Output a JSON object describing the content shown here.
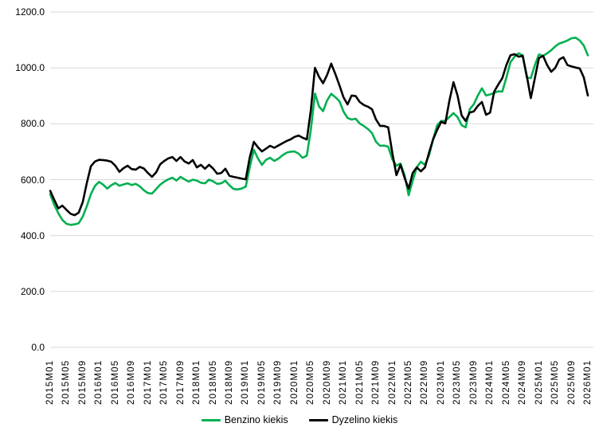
{
  "colors": {
    "background": "#ffffff",
    "gridline": "#d9d9d9",
    "axis_text": "#000000",
    "benzino_green": "#00B050",
    "dyzelino_black": "#000000"
  },
  "legend": {
    "items": [
      {
        "label": "Benzino kiekis"
      },
      {
        "label": "Dyzelino kiekis"
      }
    ]
  },
  "chart_data": {
    "type": "line",
    "title": "",
    "xlabel": "",
    "ylabel": "",
    "ylim": [
      0,
      1200
    ],
    "grid": "horizontal",
    "legend_position": "bottom",
    "x_tick_every": 4,
    "y_ticks": [
      {
        "value": 1200,
        "label": "1200.0"
      },
      {
        "value": 1000,
        "label": "1000.0"
      },
      {
        "value": 800,
        "label": "800.0"
      },
      {
        "value": 600,
        "label": "600.0"
      },
      {
        "value": 400,
        "label": "400.0"
      },
      {
        "value": 200,
        "label": "200.0"
      },
      {
        "value": 0,
        "label": "0.0"
      }
    ],
    "x_tick_labels": [
      "2015M01",
      "2015M05",
      "2015M09",
      "2016M01",
      "2016M05",
      "2016M09",
      "2017M01",
      "2017M05",
      "2017M09",
      "2018M01",
      "2018M05",
      "2018M09",
      "2019M01",
      "2019M05",
      "2019M09",
      "2020M01",
      "2020M05",
      "2020M09",
      "2021M01",
      "2021M05",
      "2021M09",
      "2022M01",
      "2022M05",
      "2022M09",
      "2023M01",
      "2023M05",
      "2023M09",
      "2024M01",
      "2024M05",
      "2024M09",
      "2025M01",
      "2025M05",
      "2025M09",
      "2026M01"
    ],
    "categories": [
      "2015M01",
      "2015M02",
      "2015M03",
      "2015M04",
      "2015M05",
      "2015M06",
      "2015M07",
      "2015M08",
      "2015M09",
      "2015M10",
      "2015M11",
      "2015M12",
      "2016M01",
      "2016M02",
      "2016M03",
      "2016M04",
      "2016M05",
      "2016M06",
      "2016M07",
      "2016M08",
      "2016M09",
      "2016M10",
      "2016M11",
      "2016M12",
      "2017M01",
      "2017M02",
      "2017M03",
      "2017M04",
      "2017M05",
      "2017M06",
      "2017M07",
      "2017M08",
      "2017M09",
      "2017M10",
      "2017M11",
      "2017M12",
      "2018M01",
      "2018M02",
      "2018M03",
      "2018M04",
      "2018M05",
      "2018M06",
      "2018M07",
      "2018M08",
      "2018M09",
      "2018M10",
      "2018M11",
      "2018M12",
      "2019M01",
      "2019M02",
      "2019M03",
      "2019M04",
      "2019M05",
      "2019M06",
      "2019M07",
      "2019M08",
      "2019M09",
      "2019M10",
      "2019M11",
      "2019M12",
      "2020M01",
      "2020M02",
      "2020M03",
      "2020M04",
      "2020M05",
      "2020M06",
      "2020M07",
      "2020M08",
      "2020M09",
      "2020M10",
      "2020M11",
      "2020M12",
      "2021M01",
      "2021M02",
      "2021M03",
      "2021M04",
      "2021M05",
      "2021M06",
      "2021M07",
      "2021M08",
      "2021M09",
      "2021M10",
      "2021M11",
      "2021M12",
      "2022M01",
      "2022M02",
      "2022M03",
      "2022M04",
      "2022M05",
      "2022M06",
      "2022M07",
      "2022M08",
      "2022M09",
      "2022M10",
      "2022M11",
      "2022M12",
      "2023M01",
      "2023M02",
      "2023M03",
      "2023M04",
      "2023M05",
      "2023M06",
      "2023M07",
      "2023M08",
      "2023M09",
      "2023M10",
      "2023M11",
      "2023M12",
      "2024M01",
      "2024M02",
      "2024M03",
      "2024M04",
      "2024M05",
      "2024M06",
      "2024M07",
      "2024M08",
      "2024M09",
      "2024M10",
      "2024M11",
      "2024M12",
      "2025M01",
      "2025M02",
      "2025M03",
      "2025M04",
      "2025M05",
      "2025M06",
      "2025M07",
      "2025M08",
      "2025M09",
      "2025M10",
      "2025M11",
      "2025M12",
      "2026M01"
    ],
    "series": [
      {
        "name": "Benzino kiekis",
        "color": "#00B050",
        "values": [
          548,
          510,
          480,
          456,
          442,
          438,
          440,
          444,
          468,
          505,
          548,
          578,
          592,
          582,
          568,
          580,
          588,
          578,
          583,
          587,
          581,
          585,
          576,
          562,
          552,
          550,
          566,
          582,
          593,
          601,
          607,
          597,
          610,
          601,
          593,
          600,
          597,
          589,
          587,
          600,
          594,
          585,
          587,
          596,
          580,
          567,
          565,
          568,
          575,
          645,
          707,
          676,
          653,
          671,
          678,
          667,
          675,
          687,
          696,
          700,
          701,
          693,
          678,
          686,
          780,
          908,
          862,
          845,
          884,
          907,
          895,
          881,
          844,
          821,
          815,
          818,
          801,
          792,
          781,
          767,
          735,
          721,
          722,
          718,
          673,
          650,
          658,
          616,
          544,
          596,
          644,
          664,
          653,
          687,
          744,
          795,
          810,
          810,
          824,
          838,
          824,
          795,
          787,
          852,
          870,
          901,
          927,
          901,
          905,
          910,
          916,
          915,
          965,
          1020,
          1040,
          1052,
          1045,
          966,
          963,
          1010,
          1048,
          1043,
          1052,
          1063,
          1077,
          1087,
          1092,
          1098,
          1106,
          1108,
          1098,
          1080,
          1045
        ]
      },
      {
        "name": "Dyzelino kiekis",
        "color": "#000000",
        "values": [
          560,
          528,
          497,
          507,
          492,
          478,
          473,
          482,
          520,
          588,
          648,
          665,
          671,
          670,
          668,
          664,
          650,
          628,
          641,
          650,
          638,
          636,
          646,
          640,
          624,
          610,
          626,
          655,
          667,
          676,
          681,
          667,
          681,
          665,
          658,
          670,
          644,
          653,
          639,
          653,
          640,
          621,
          624,
          639,
          614,
          610,
          607,
          604,
          601,
          680,
          735,
          716,
          701,
          711,
          721,
          714,
          722,
          730,
          738,
          744,
          753,
          758,
          750,
          744,
          850,
          1000,
          968,
          945,
          975,
          1015,
          978,
          938,
          895,
          869,
          901,
          899,
          878,
          867,
          861,
          852,
          815,
          792,
          792,
          787,
          696,
          616,
          653,
          607,
          567,
          624,
          644,
          630,
          644,
          696,
          744,
          778,
          807,
          801,
          881,
          949,
          901,
          830,
          810,
          840,
          844,
          864,
          878,
          832,
          840,
          915,
          940,
          963,
          1010,
          1045,
          1049,
          1040,
          1043,
          972,
          892,
          963,
          1035,
          1043,
          1010,
          986,
          1000,
          1030,
          1038,
          1010,
          1005,
          1001,
          998,
          966,
          901
        ]
      }
    ]
  }
}
